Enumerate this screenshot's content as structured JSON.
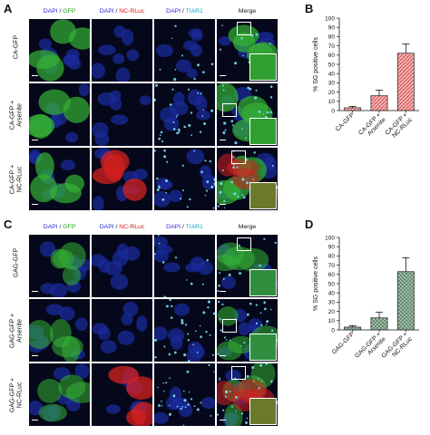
{
  "figure": {
    "panels": {
      "A": {
        "letter": "A",
        "columns": [
          {
            "parts": [
              {
                "text": "DAPI",
                "color": "blue"
              },
              {
                "text": " / ",
                "color": "black"
              },
              {
                "text": "GFP",
                "color": "green"
              }
            ]
          },
          {
            "parts": [
              {
                "text": "DAPI",
                "color": "blue"
              },
              {
                "text": " / ",
                "color": "black"
              },
              {
                "text": "NC-RLuc",
                "color": "red"
              }
            ]
          },
          {
            "parts": [
              {
                "text": "DAPI",
                "color": "blue"
              },
              {
                "text": " / ",
                "color": "black"
              },
              {
                "text": "TIAR1",
                "color": "cyan"
              }
            ]
          },
          {
            "parts": [
              {
                "text": "Merge",
                "color": "black"
              }
            ]
          }
        ],
        "rows": [
          "CA-GFP",
          "CA-GFP +\nArsenite",
          "CA-GFP +\nNC-RLuc"
        ]
      },
      "C": {
        "letter": "C",
        "columns": [
          {
            "parts": [
              {
                "text": "DAPI",
                "color": "blue"
              },
              {
                "text": " / ",
                "color": "black"
              },
              {
                "text": "GFP",
                "color": "green"
              }
            ]
          },
          {
            "parts": [
              {
                "text": "DAPI",
                "color": "blue"
              },
              {
                "text": " / ",
                "color": "black"
              },
              {
                "text": "NC-RLuc",
                "color": "red"
              }
            ]
          },
          {
            "parts": [
              {
                "text": "DAPI",
                "color": "blue"
              },
              {
                "text": " / ",
                "color": "black"
              },
              {
                "text": "TIAR1",
                "color": "cyan"
              }
            ]
          },
          {
            "parts": [
              {
                "text": "Merge",
                "color": "black"
              }
            ]
          }
        ],
        "rows": [
          "GAG-GFP",
          "GAG-GFP +\nArsenite",
          "GAG-GFP +\nNC-RLuc"
        ]
      },
      "B": {
        "letter": "B"
      },
      "D": {
        "letter": "D"
      }
    },
    "colors": {
      "blue": "#2b2bd6",
      "green": "#1f9d1f",
      "red": "#d41a1a",
      "cyan": "#1aa6c8",
      "black": "#111111",
      "bar_red": "#e46c6c",
      "bar_green": "#7fa08a"
    }
  },
  "chart_data": [
    {
      "type": "bar",
      "panel": "B",
      "categories": [
        "CA-GFP",
        "CA-GFP +\nArsenite",
        "CA-GFP +\nNC-RLuc"
      ],
      "values": [
        3,
        16,
        62
      ],
      "errors": [
        1.5,
        6,
        10
      ],
      "title": "",
      "xlabel": "",
      "ylabel": "% SG positive cells",
      "ylim": [
        0,
        100
      ],
      "yticks": [
        0,
        10,
        20,
        30,
        40,
        50,
        60,
        70,
        80,
        90,
        100
      ],
      "pattern": "hatched-red",
      "grid": false
    },
    {
      "type": "bar",
      "panel": "D",
      "categories": [
        "GAG-GFP",
        "GAG-GFP +\nArsenite",
        "GAG-GFP +\nNC-RLuc"
      ],
      "values": [
        3,
        13,
        63
      ],
      "errors": [
        1.5,
        6,
        15
      ],
      "title": "",
      "xlabel": "",
      "ylabel": "% SG positive cells",
      "ylim": [
        0,
        100
      ],
      "yticks": [
        0,
        10,
        20,
        30,
        40,
        50,
        60,
        70,
        80,
        90,
        100
      ],
      "pattern": "crosshatch-green",
      "grid": false
    }
  ]
}
